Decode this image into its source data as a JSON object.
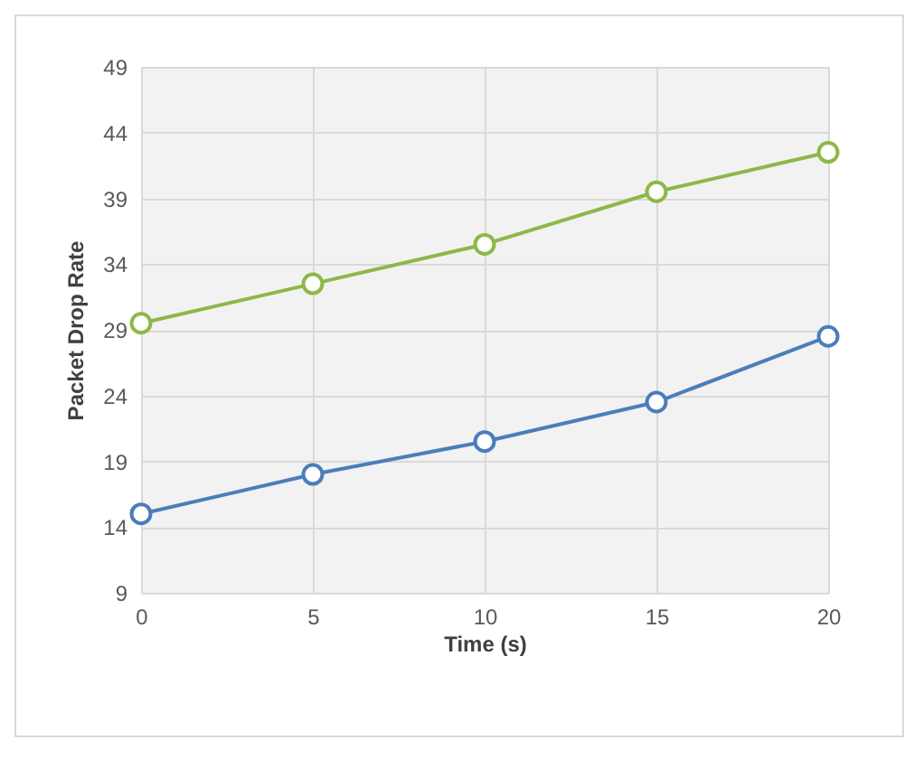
{
  "chart_data": {
    "type": "line",
    "xlabel": "Time (s)",
    "ylabel": "Packet Drop Rate",
    "x": [
      0,
      5,
      10,
      15,
      20
    ],
    "series": [
      {
        "color": "#8db848",
        "values": [
          29.5,
          32.5,
          35.5,
          39.5,
          42.5
        ]
      },
      {
        "color": "#4a7ebb",
        "values": [
          15,
          18,
          20.5,
          23.5,
          28.5
        ]
      }
    ],
    "xlim": [
      0,
      20
    ],
    "xticks": [
      0,
      5,
      10,
      15,
      20
    ],
    "ylim": [
      9,
      49
    ],
    "yticks": [
      9,
      14,
      19,
      24,
      29,
      34,
      39,
      44,
      49
    ],
    "grid": true,
    "marker": "circle",
    "line_style": "solid"
  }
}
